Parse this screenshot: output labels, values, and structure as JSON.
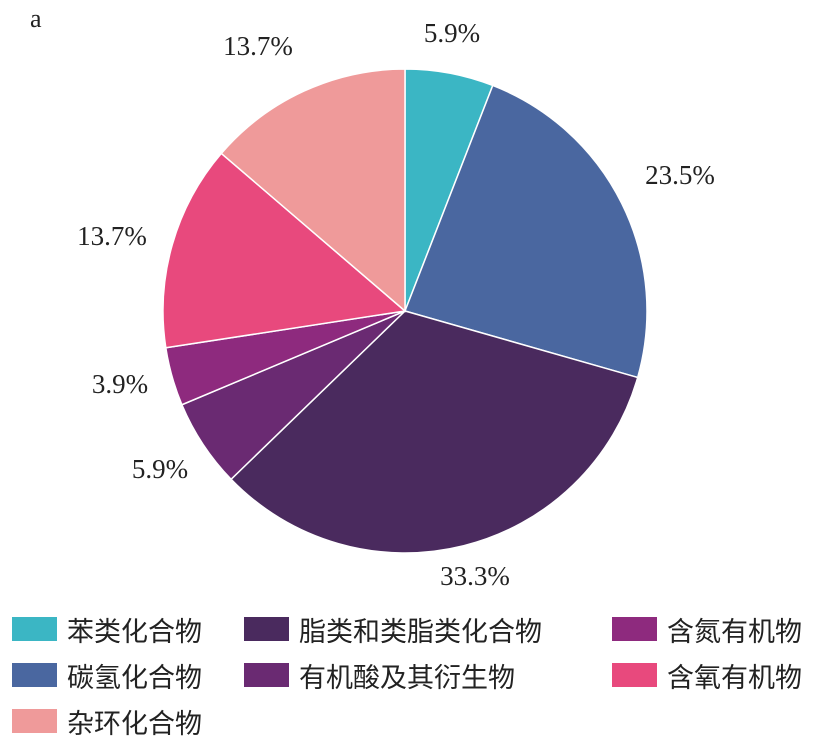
{
  "panel_label": "a",
  "chart_data": {
    "type": "pie",
    "title": "",
    "slices": [
      {
        "label": "苯类化合物",
        "value": 5.9,
        "display": "5.9%",
        "color": "#3bb6c4"
      },
      {
        "label": "碳氢化合物",
        "value": 23.5,
        "display": "23.5%",
        "color": "#4a67a0"
      },
      {
        "label": "脂类和类脂类化合物",
        "value": 33.3,
        "display": "33.3%",
        "color": "#4a2a5e"
      },
      {
        "label": "有机酸及其衍生物",
        "value": 5.9,
        "display": "5.9%",
        "color": "#6a2a72"
      },
      {
        "label": "含氮有机物",
        "value": 3.9,
        "display": "3.9%",
        "color": "#8e2a7e"
      },
      {
        "label": "含氧有机物",
        "value": 13.7,
        "display": "13.7%",
        "color": "#e8497d"
      },
      {
        "label": "杂环化合物",
        "value": 13.7,
        "display": "13.7%",
        "color": "#ef9a9a"
      }
    ],
    "legend_placement": "bottom"
  },
  "legend": [
    {
      "label": "苯类化合物",
      "color": "#3bb6c4"
    },
    {
      "label": "脂类和类脂类化合物",
      "color": "#4a2a5e"
    },
    {
      "label": "含氮有机物",
      "color": "#8e2a7e"
    },
    {
      "label": "碳氢化合物",
      "color": "#4a67a0"
    },
    {
      "label": "有机酸及其衍生物",
      "color": "#6a2a72"
    },
    {
      "label": "含氧有机物",
      "color": "#e8497d"
    },
    {
      "label": "杂环化合物",
      "color": "#ef9a9a"
    }
  ]
}
